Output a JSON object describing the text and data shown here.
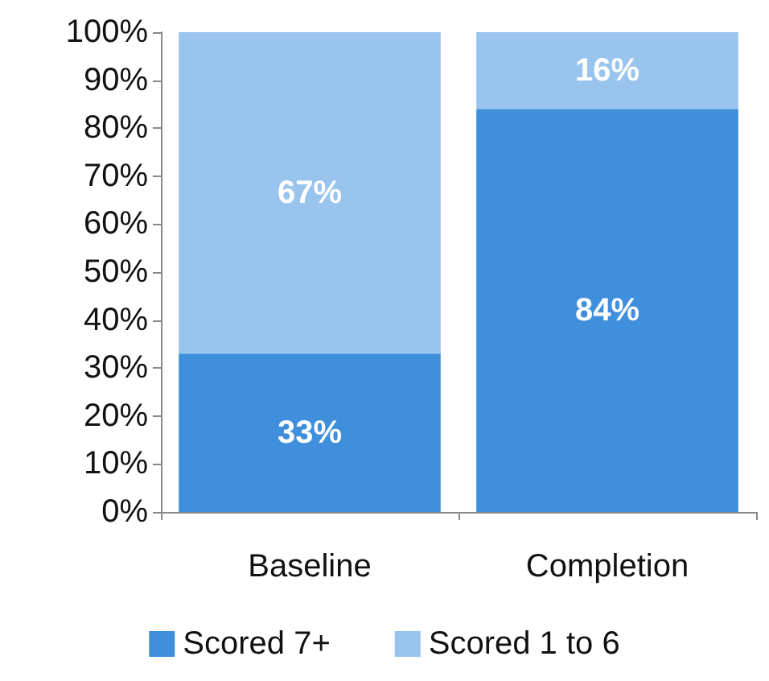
{
  "chart_data": {
    "type": "bar",
    "stacked": true,
    "categories": [
      "Baseline",
      "Completion"
    ],
    "series": [
      {
        "name": "Scored 7+",
        "color": "#3f8fdd",
        "values": [
          33,
          84
        ],
        "value_labels": [
          "33%",
          "84%"
        ]
      },
      {
        "name": "Scored 1 to 6",
        "color": "#99c4ee",
        "values": [
          67,
          16
        ],
        "value_labels": [
          "67%",
          "16%"
        ]
      }
    ],
    "ylim": [
      0,
      100
    ],
    "yticks": [
      {
        "value": 0,
        "label": "0%"
      },
      {
        "value": 10,
        "label": "10%"
      },
      {
        "value": 20,
        "label": "20%"
      },
      {
        "value": 30,
        "label": "30%"
      },
      {
        "value": 40,
        "label": "40%"
      },
      {
        "value": 50,
        "label": "50%"
      },
      {
        "value": 60,
        "label": "60%"
      },
      {
        "value": 70,
        "label": "70%"
      },
      {
        "value": 80,
        "label": "80%"
      },
      {
        "value": 90,
        "label": "90%"
      },
      {
        "value": 100,
        "label": "100%"
      }
    ],
    "grid": false,
    "legend": "bottom"
  }
}
